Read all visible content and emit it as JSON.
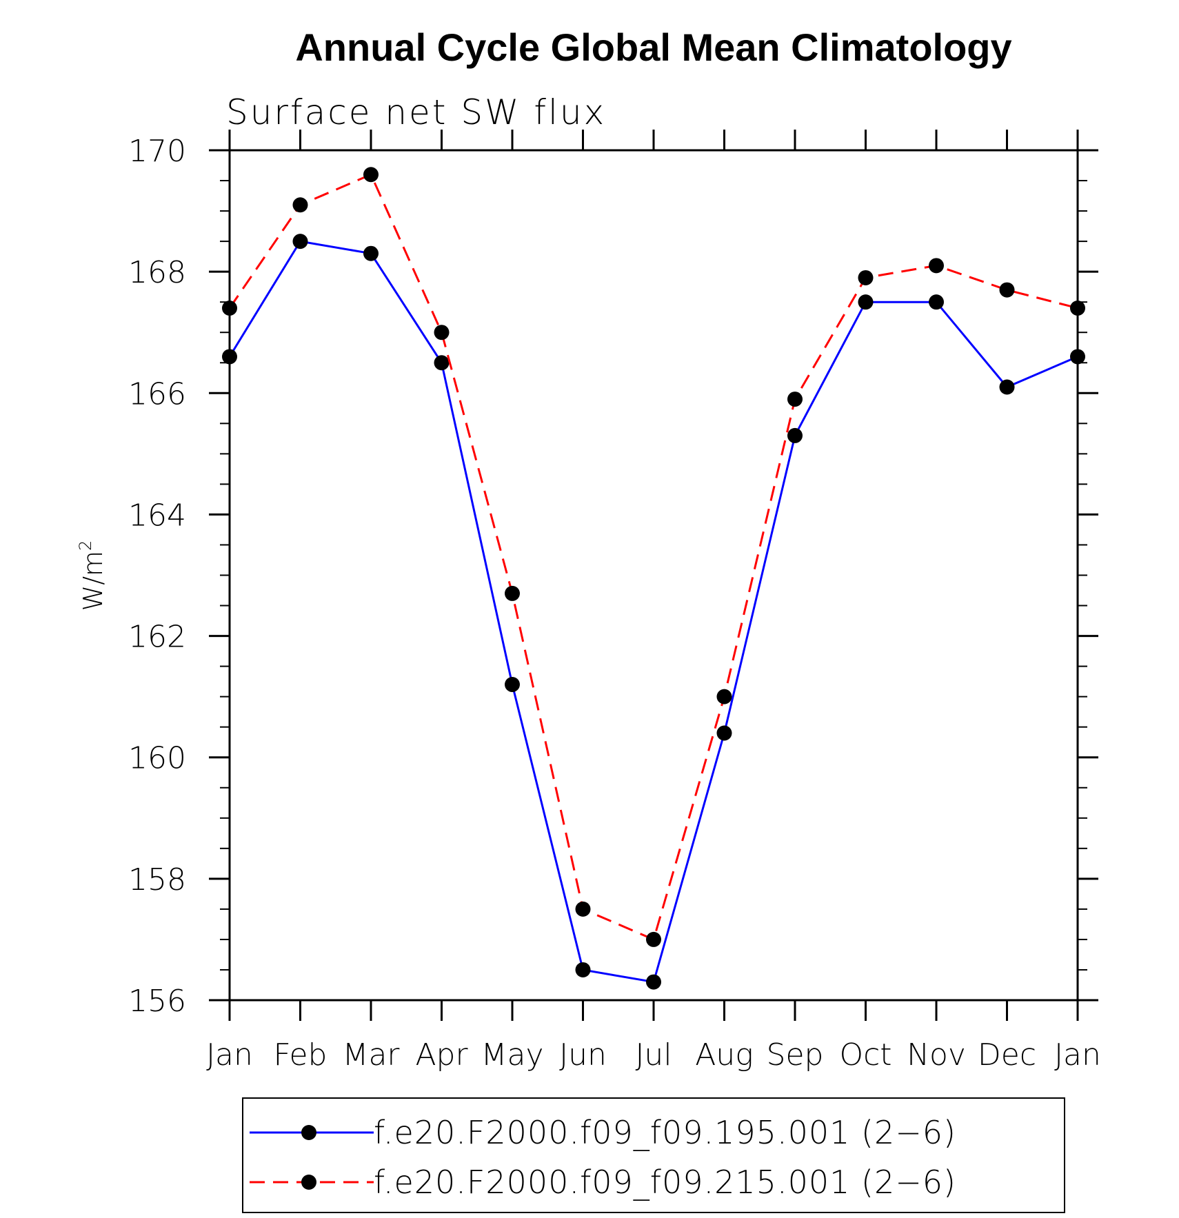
{
  "chart_data": {
    "type": "line",
    "title": "Annual Cycle Global Mean Climatology",
    "subtitle": "Surface net SW flux",
    "xlabel": "",
    "ylabel": "W/m",
    "ylabel_superscript": "2",
    "categories": [
      "Jan",
      "Feb",
      "Mar",
      "Apr",
      "May",
      "Jun",
      "Jul",
      "Aug",
      "Sep",
      "Oct",
      "Nov",
      "Dec",
      "Jan"
    ],
    "ylim": [
      156,
      170
    ],
    "yticks": [
      "156",
      "158",
      "160",
      "162",
      "164",
      "166",
      "168",
      "170"
    ],
    "grid": false,
    "legend_position": "bottom",
    "series": [
      {
        "name": "f.e20.F2000.f09_f09.195.001 (2−6)",
        "color": "#0000ff",
        "dash": "solid",
        "marker": "filled-circle",
        "values": [
          166.6,
          168.5,
          168.3,
          166.5,
          161.2,
          156.5,
          156.3,
          160.4,
          165.3,
          167.5,
          167.5,
          166.1,
          166.6
        ]
      },
      {
        "name": "f.e20.F2000.f09_f09.215.001 (2−6)",
        "color": "#ff0000",
        "dash": "dashed",
        "marker": "filled-circle",
        "values": [
          167.4,
          169.1,
          169.6,
          167.0,
          162.7,
          157.5,
          157.0,
          161.0,
          165.9,
          167.9,
          168.1,
          167.7,
          167.4
        ]
      }
    ]
  }
}
